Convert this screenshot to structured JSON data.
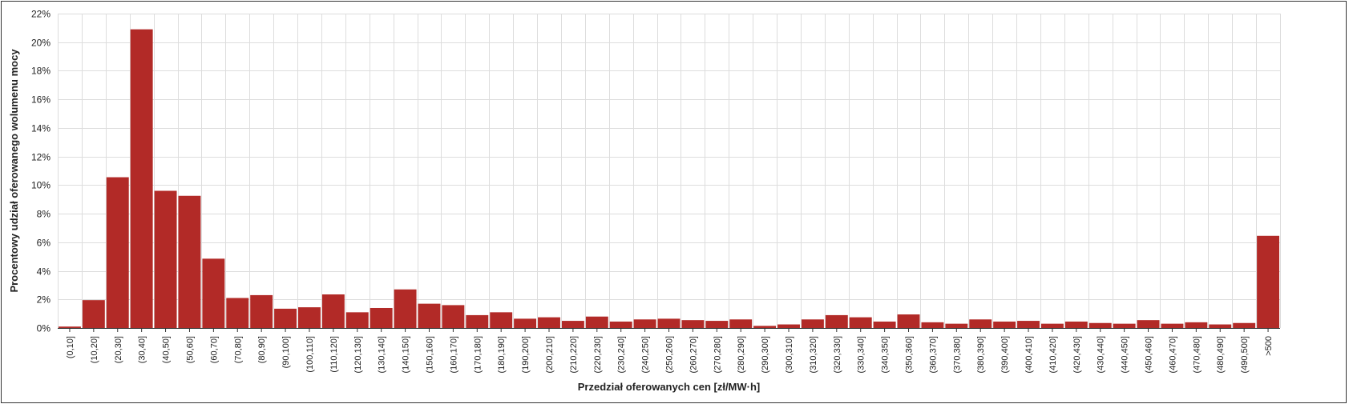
{
  "chart_data": {
    "type": "bar",
    "title": "",
    "xlabel": "Przedział oferowanych cen [zł/MW·h]",
    "ylabel": "Procentowy udział oferowanego wolumenu mocy",
    "ylim": [
      0,
      22
    ],
    "yticks": [
      "0%",
      "2%",
      "4%",
      "6%",
      "8%",
      "10%",
      "12%",
      "14%",
      "16%",
      "18%",
      "20%",
      "22%"
    ],
    "grid": true,
    "legend": "none",
    "bar_color": "#B22A27",
    "categories": [
      "(0,10]",
      "(10,20]",
      "(20,30]",
      "(30,40]",
      "(40,50]",
      "(50,60]",
      "(60,70]",
      "(70,80]",
      "(80,90]",
      "(90,100]",
      "(100,110]",
      "(110,120]",
      "(120,130]",
      "(130,140]",
      "(140,150]",
      "(150,160]",
      "(160,170]",
      "(170,180]",
      "(180,190]",
      "(190,200]",
      "(200,210]",
      "(210,220]",
      "(220,230]",
      "(230,240]",
      "(240,250]",
      "(250,260]",
      "(260,270]",
      "(270,280]",
      "(280,290]",
      "(290,300]",
      "(300,310]",
      "(310,320]",
      "(320,330]",
      "(330,340]",
      "(340,350]",
      "(350,360]",
      "(360,370]",
      "(370,380]",
      "(380,390]",
      "(390,400]",
      "(400,410]",
      "(410,420]",
      "(420,430]",
      "(430,440]",
      "(440,450]",
      "(450,460]",
      "(460,470]",
      "(470,480]",
      "(480,490]",
      "(490,500]",
      ">500"
    ],
    "values": [
      0.1,
      1.95,
      10.55,
      20.9,
      9.6,
      9.25,
      4.85,
      2.1,
      2.3,
      1.35,
      1.45,
      2.35,
      1.1,
      1.4,
      2.7,
      1.7,
      1.6,
      0.9,
      1.1,
      0.65,
      0.75,
      0.5,
      0.8,
      0.45,
      0.6,
      0.65,
      0.55,
      0.5,
      0.6,
      0.15,
      0.25,
      0.6,
      0.9,
      0.75,
      0.45,
      0.95,
      0.4,
      0.3,
      0.6,
      0.45,
      0.5,
      0.3,
      0.45,
      0.35,
      0.3,
      0.55,
      0.3,
      0.4,
      0.25,
      0.35,
      6.45
    ]
  }
}
